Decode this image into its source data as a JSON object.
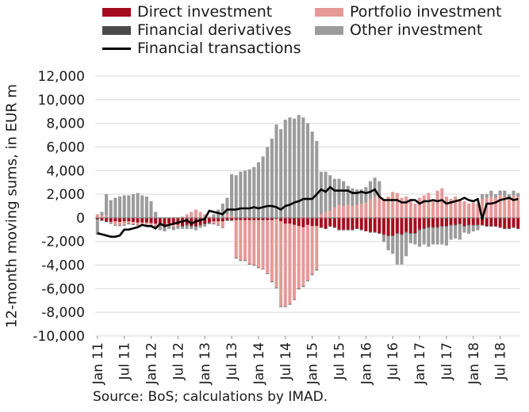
{
  "chart_data": {
    "type": "bar",
    "ylabel": "12-month moving sums, in EUR m",
    "ylim": [
      -10000,
      12000
    ],
    "yticks": [
      -10000,
      -8000,
      -6000,
      -4000,
      -2000,
      0,
      2000,
      4000,
      6000,
      8000,
      10000,
      12000
    ],
    "ytick_labels": [
      "-10,000",
      "-8,000",
      "-6,000",
      "-4,000",
      "-2,000",
      "0",
      "2,000",
      "4,000",
      "6,000",
      "8,000",
      "10,000",
      "12,000"
    ],
    "x_tick_labels": [
      "Jan 11",
      "Jul 11",
      "Jan 12",
      "Jul 12",
      "Jan 13",
      "Jul 13",
      "Jan 14",
      "Jul 14",
      "Jan 15",
      "Jul 15",
      "Jan 16",
      "Jul 16",
      "Jan 17",
      "Jul 17",
      "Jan 18",
      "Jul 18"
    ],
    "x_tick_every": 6,
    "num_months": 95,
    "grid": "horizontal",
    "legend_position": "top",
    "source": "Source: BoS; calculations by IMAD.",
    "series": [
      {
        "name": "Direct investment",
        "color": "#a50d1e",
        "type": "bar",
        "values": [
          -100,
          -200,
          -300,
          -350,
          -300,
          -350,
          -300,
          -300,
          -350,
          -400,
          -400,
          -400,
          -450,
          -500,
          -500,
          -700,
          -500,
          -600,
          -600,
          -700,
          -600,
          -700,
          -700,
          -600,
          -500,
          -400,
          -300,
          -300,
          -300,
          -200,
          -200,
          -200,
          -200,
          -200,
          -200,
          -200,
          -200,
          -200,
          -200,
          -200,
          -100,
          -300,
          -500,
          -500,
          -600,
          -700,
          -800,
          -600,
          -700,
          -700,
          -800,
          -900,
          -700,
          -800,
          -1000,
          -1000,
          -1000,
          -1000,
          -900,
          -1000,
          -1100,
          -1200,
          -1200,
          -1300,
          -1400,
          -1500,
          -1500,
          -1300,
          -1400,
          -1200,
          -1300,
          -1300,
          -1000,
          -900,
          -800,
          -800,
          -800,
          -700,
          -700,
          -600,
          -600,
          -500,
          -700,
          -600,
          -600,
          -600,
          -600,
          -700,
          -700,
          -700,
          -800,
          -900,
          -900,
          -800,
          -900
        ]
      },
      {
        "name": "Portfolio investment",
        "color": "#e59a98",
        "type": "bar",
        "values": [
          300,
          200,
          200,
          -100,
          -300,
          -300,
          -300,
          -200,
          -200,
          -200,
          -200,
          -200,
          -200,
          -200,
          -100,
          -100,
          -100,
          -200,
          -100,
          100,
          300,
          500,
          700,
          500,
          300,
          100,
          -200,
          -300,
          -500,
          300,
          200,
          -3200,
          -3400,
          -3400,
          -3700,
          -3800,
          -4000,
          -4100,
          -4500,
          -5200,
          -5800,
          -7200,
          -7000,
          -6800,
          -6300,
          -5300,
          -5000,
          -4700,
          -4100,
          -3700,
          300,
          500,
          600,
          900,
          1100,
          1000,
          1100,
          1000,
          1100,
          1200,
          1300,
          1600,
          1800,
          1700,
          1600,
          1800,
          2200,
          2100,
          1700,
          1800,
          1600,
          1200,
          1700,
          1900,
          2100,
          1400,
          2300,
          2500,
          1800,
          1600,
          1800,
          1600,
          1400,
          1200,
          1300,
          1200,
          1600,
          1700,
          1800,
          1700,
          1900,
          1800,
          1700,
          1900,
          1800
        ]
      },
      {
        "name": "Financial derivatives",
        "color": "#4a4a4a",
        "type": "bar",
        "values": [
          -50,
          -50,
          -50,
          -50,
          -50,
          -50,
          -50,
          -50,
          -50,
          -50,
          -50,
          -50,
          -50,
          -50,
          -50,
          -50,
          -50,
          -50,
          -50,
          -50,
          -50,
          -50,
          -50,
          -50,
          -50,
          -50,
          -50,
          -50,
          -50,
          -50,
          -50,
          -50,
          -50,
          -50,
          -50,
          -50,
          -50,
          -50,
          -50,
          -50,
          -50,
          -50,
          -50,
          -50,
          -50,
          -50,
          -50,
          -50,
          -50,
          -50,
          -50,
          -50,
          -50,
          -50,
          -50,
          -50,
          -50,
          -50,
          -50,
          -50,
          -50,
          -50,
          -50,
          -50,
          -50,
          -50,
          -50,
          -50,
          -50,
          -50,
          -50,
          -50,
          -50,
          -50,
          -50,
          -50,
          -50,
          -50,
          -50,
          -50,
          -50,
          -50,
          -50,
          -50,
          -50,
          -50,
          -50,
          -50,
          -50,
          -50,
          -50,
          -50,
          -50,
          -50,
          -50
        ]
      },
      {
        "name": "Other investment",
        "color": "#9b9b9b",
        "type": "bar",
        "values": [
          -1300,
          300,
          1800,
          1500,
          1700,
          1800,
          1900,
          1900,
          2000,
          2100,
          1900,
          1800,
          1400,
          500,
          -400,
          -300,
          -300,
          -200,
          -200,
          -200,
          -300,
          -200,
          -300,
          -200,
          -200,
          -100,
          300,
          700,
          1200,
          1400,
          3500,
          3600,
          3900,
          4000,
          4100,
          4300,
          4700,
          5200,
          6000,
          6700,
          7900,
          7500,
          8300,
          8500,
          8400,
          8700,
          8500,
          8000,
          7300,
          6500,
          3600,
          3400,
          3000,
          2400,
          2200,
          2100,
          1600,
          1500,
          1300,
          1200,
          1300,
          1500,
          1600,
          1400,
          -600,
          -1200,
          -1500,
          -2600,
          -2500,
          -2000,
          -800,
          -900,
          -1400,
          -1300,
          -1600,
          -1400,
          -1400,
          -1500,
          -1600,
          -1200,
          -1100,
          -1300,
          -500,
          -700,
          -500,
          -400,
          400,
          300,
          500,
          300,
          400,
          500,
          300,
          400,
          300
        ]
      },
      {
        "name": "Financial transactions",
        "color": "#000000",
        "type": "line",
        "values": [
          -1300,
          -1400,
          -1500,
          -1600,
          -1600,
          -1500,
          -1000,
          -1000,
          -900,
          -800,
          -600,
          -700,
          -700,
          -900,
          -500,
          -700,
          -600,
          -500,
          -400,
          -300,
          -200,
          -500,
          -300,
          -200,
          -100,
          600,
          500,
          400,
          300,
          700,
          700,
          700,
          800,
          800,
          800,
          900,
          800,
          900,
          1000,
          1000,
          900,
          700,
          1000,
          1100,
          1300,
          1400,
          1600,
          1600,
          1600,
          2000,
          2400,
          2200,
          2600,
          2300,
          2300,
          2300,
          2300,
          2100,
          2100,
          2200,
          2100,
          2200,
          2400,
          1800,
          1500,
          1500,
          1500,
          1500,
          1300,
          1300,
          1500,
          1500,
          1200,
          1400,
          1400,
          1500,
          1400,
          1500,
          1200,
          1300,
          1400,
          1500,
          1700,
          1500,
          1400,
          1600,
          -100,
          1200,
          1200,
          1300,
          1500,
          1600,
          1700,
          1500,
          1600
        ]
      }
    ]
  }
}
